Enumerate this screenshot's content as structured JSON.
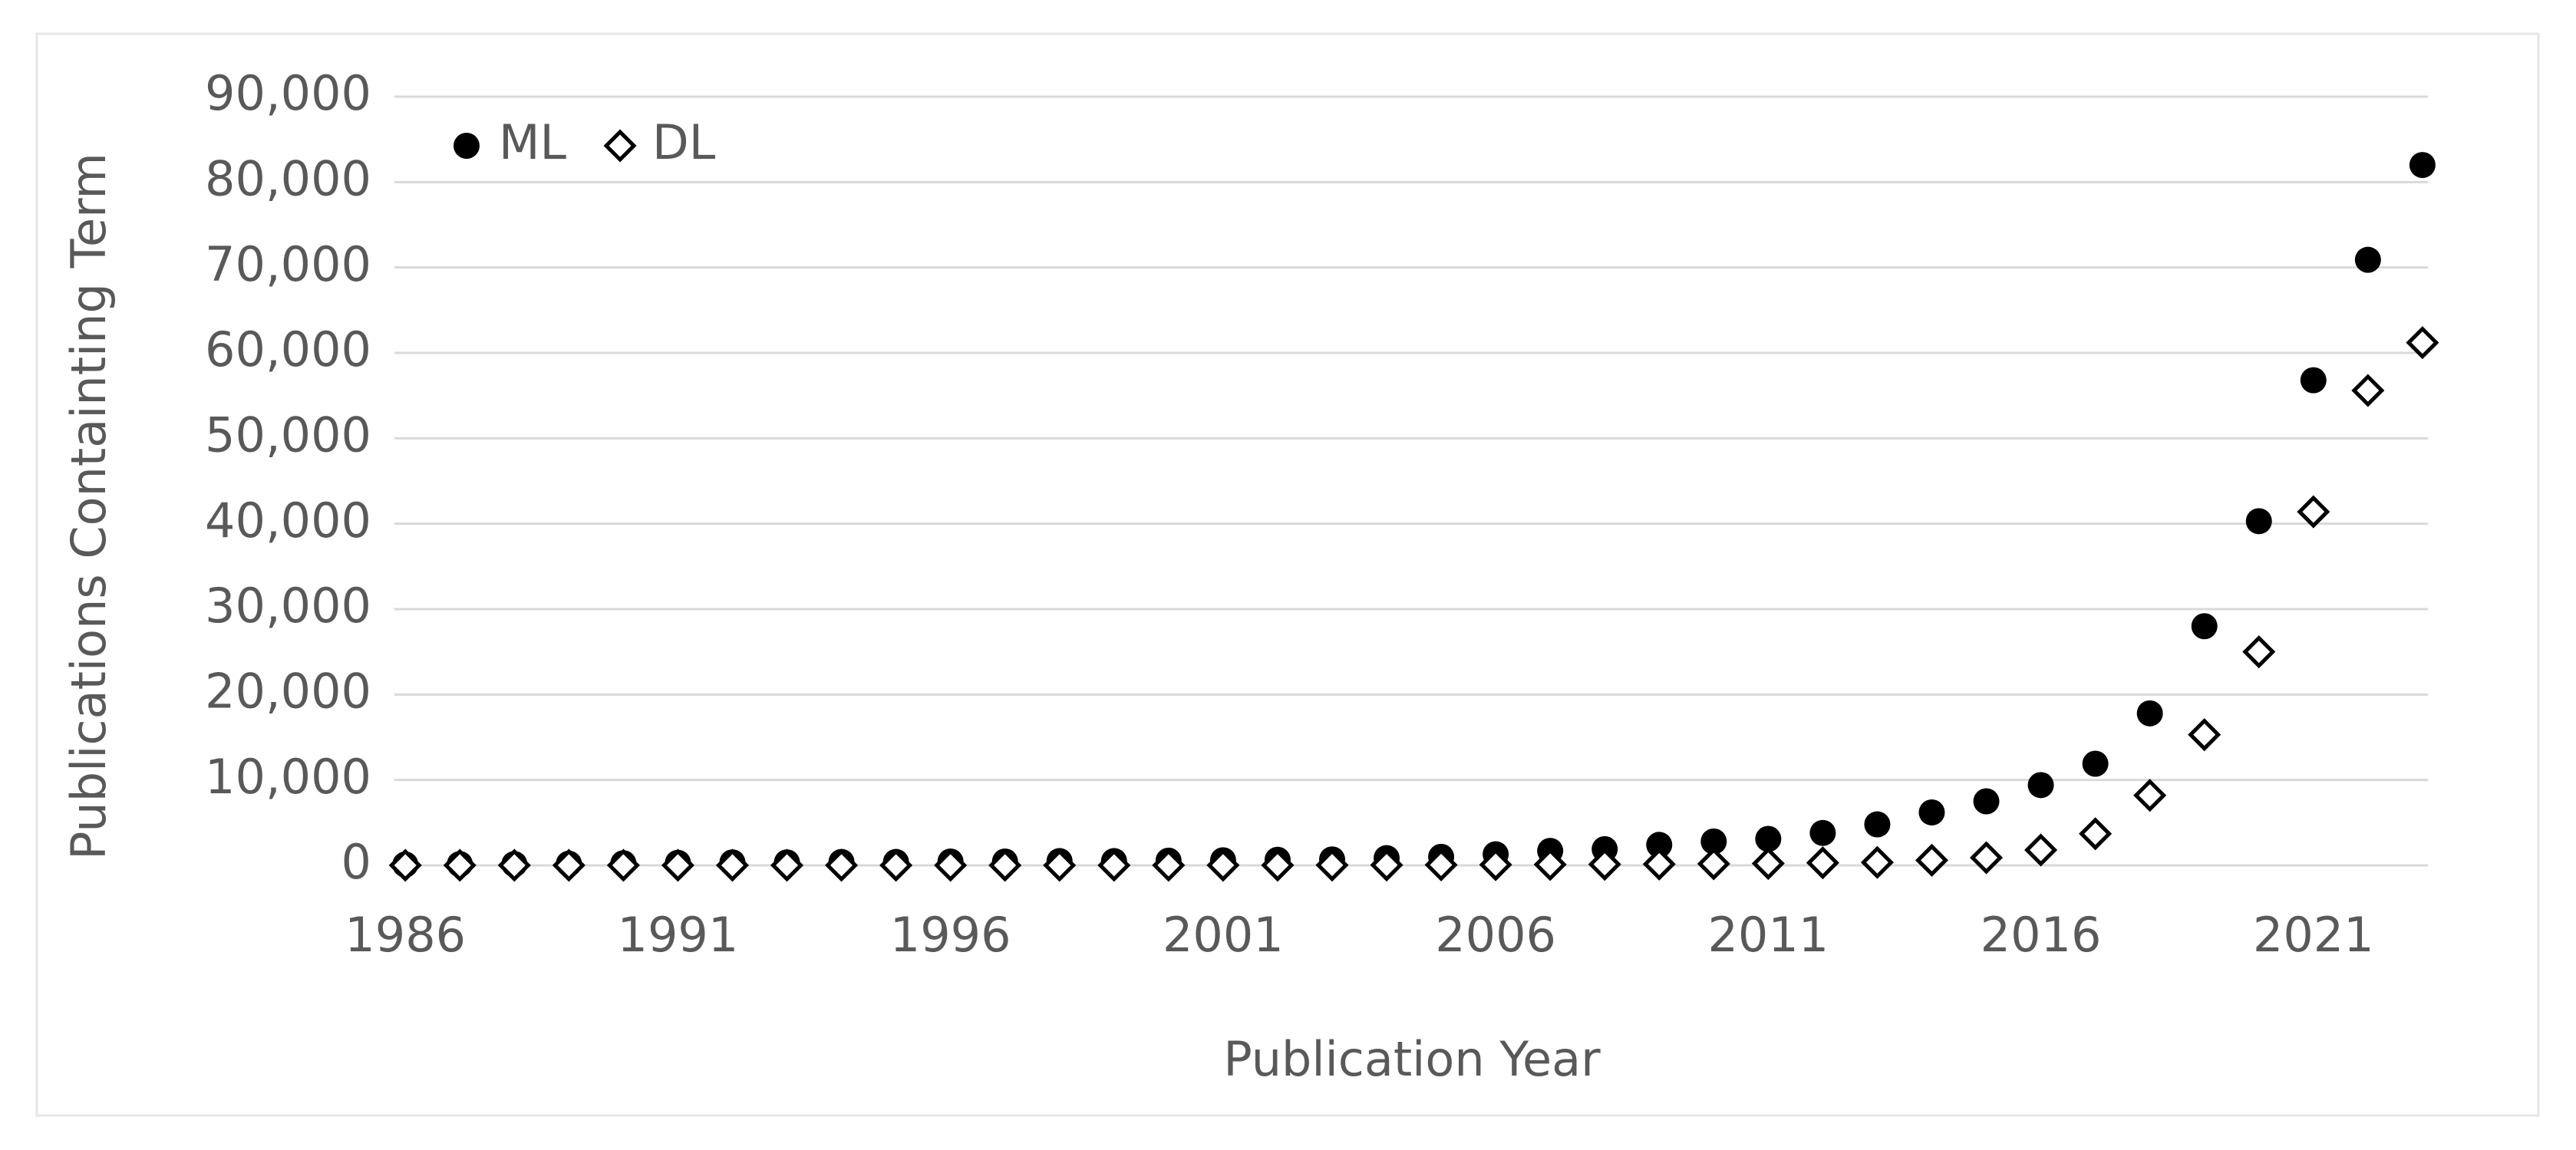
{
  "chart_data": {
    "type": "scatter",
    "x_label": "Publication Year",
    "y_label": "Publications Containting Term",
    "x": [
      1986,
      1987,
      1988,
      1989,
      1990,
      1991,
      1992,
      1993,
      1994,
      1995,
      1996,
      1997,
      1998,
      1999,
      2000,
      2001,
      2002,
      2003,
      2004,
      2005,
      2006,
      2007,
      2008,
      2009,
      2010,
      2011,
      2012,
      2013,
      2014,
      2015,
      2016,
      2017,
      2018,
      2019,
      2020,
      2021,
      2022,
      2023
    ],
    "series": [
      {
        "name": "ML",
        "color": "#000000",
        "marker": "circle",
        "values": [
          100,
          150,
          150,
          200,
          250,
          300,
          350,
          350,
          400,
          400,
          450,
          450,
          500,
          500,
          550,
          600,
          650,
          700,
          850,
          1000,
          1300,
          1700,
          1900,
          2400,
          2800,
          3100,
          3800,
          4800,
          6200,
          7500,
          9400,
          11900,
          17800,
          28000,
          40300,
          56800,
          70900,
          82000
        ]
      },
      {
        "name": "DL",
        "color": "#000000",
        "marker": "diamond",
        "values": [
          10,
          10,
          10,
          10,
          10,
          10,
          10,
          10,
          10,
          10,
          10,
          10,
          10,
          10,
          10,
          20,
          20,
          30,
          40,
          60,
          80,
          100,
          120,
          150,
          180,
          220,
          300,
          350,
          600,
          900,
          1800,
          3700,
          8200,
          15300,
          25000,
          41400,
          55600,
          61200
        ]
      }
    ],
    "xlim": [
      1985.8,
      2023.1
    ],
    "xticks": [
      1986,
      1991,
      1996,
      2001,
      2006,
      2011,
      2016,
      2021
    ],
    "ylim": [
      0,
      90000
    ],
    "yticks": [
      0,
      {
        "value": 10000,
        "label": "10,000"
      },
      {
        "value": 20000,
        "label": "20,000"
      },
      {
        "value": 30000,
        "label": "30,000"
      },
      {
        "value": 40000,
        "label": "40,000"
      },
      {
        "value": 50000,
        "label": "50,000"
      },
      {
        "value": 60000,
        "label": "60,000"
      },
      {
        "value": 70000,
        "label": "70,000"
      },
      {
        "value": 80000,
        "label": "80,000"
      },
      {
        "value": 90000,
        "label": "90,000"
      }
    ],
    "grid": true,
    "legend": "top-left"
  }
}
